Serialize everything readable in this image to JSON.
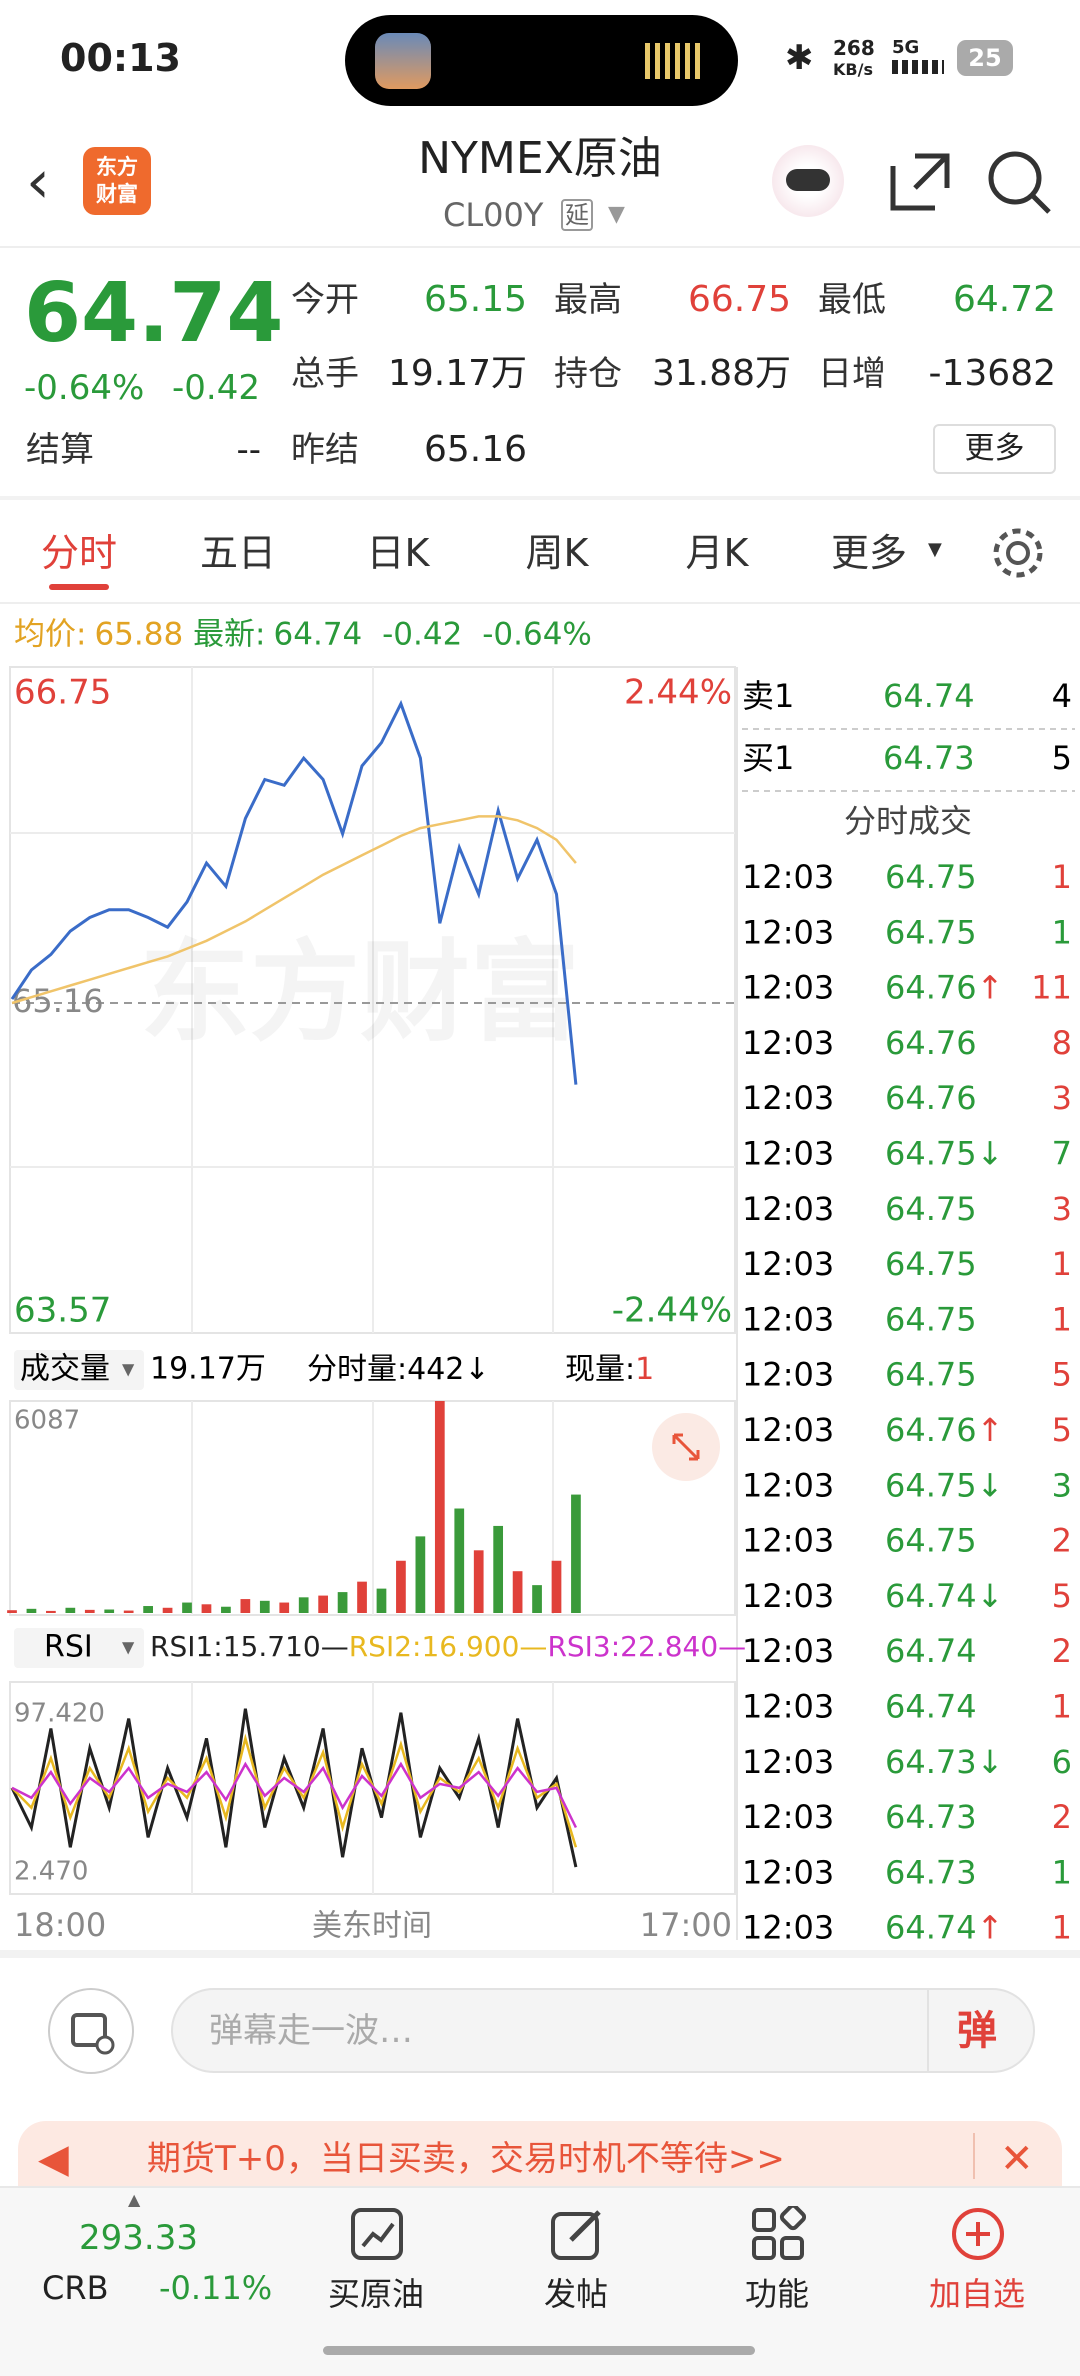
{
  "status_bar": {
    "time": "00:13",
    "net_speed": "268",
    "net_unit": "KB/s",
    "network": "5G",
    "battery": "25"
  },
  "header": {
    "logo": [
      "东方",
      "财富"
    ],
    "title": "NYMEX原油",
    "code": "CL00Y",
    "tag": "延"
  },
  "quote": {
    "price": "64.74",
    "change_pct": "-0.64%",
    "change": "-0.42",
    "fields": [
      {
        "label": "今开",
        "value": "65.15"
      },
      {
        "label": "最高",
        "value": "66.75"
      },
      {
        "label": "最低",
        "value": "64.72"
      },
      {
        "label": "总手",
        "value": "19.17万"
      },
      {
        "label": "持仓",
        "value": "31.88万"
      },
      {
        "label": "日增",
        "value": "-13682"
      },
      {
        "label": "结算",
        "value": "--"
      },
      {
        "label": "昨结",
        "value": "65.16"
      }
    ],
    "more": "更多"
  },
  "tabs": [
    "分时",
    "五日",
    "日K",
    "周K",
    "月K",
    "更多"
  ],
  "info": {
    "avg_label": "均价:",
    "avg": "65.88",
    "last_label": "最新:",
    "last": "64.74",
    "change": "-0.42",
    "change_pct": "-0.64%"
  },
  "chart_data": [
    {
      "type": "line",
      "ylim": [
        63.57,
        66.75
      ],
      "yticks": [
        66.75,
        63.57
      ],
      "y2lim": [
        -2.44,
        2.44
      ],
      "y2ticks": [
        {
          "value": 2.44,
          "label": "2.44%"
        },
        {
          "value": -2.44,
          "label": "-2.44%"
        }
      ],
      "reference_line": 65.16,
      "watermark": "东方财富",
      "x_labels": [
        "18:00",
        "17:00"
      ],
      "x_title": "美东时间",
      "series": [
        {
          "color": "#3a6cc8",
          "values": [
            65.18,
            65.33,
            65.41,
            65.53,
            65.6,
            65.64,
            65.64,
            65.6,
            65.55,
            65.68,
            65.88,
            65.76,
            66.11,
            66.31,
            66.28,
            66.42,
            66.31,
            66.03,
            66.38,
            66.5,
            66.7,
            66.42,
            65.57,
            65.96,
            65.72,
            66.15,
            65.8,
            66.0,
            65.72,
            64.74
          ]
        },
        {
          "color": "#f0c46a",
          "values": [
            65.16,
            65.19,
            65.22,
            65.25,
            65.28,
            65.31,
            65.34,
            65.37,
            65.4,
            65.44,
            65.48,
            65.53,
            65.58,
            65.64,
            65.7,
            65.76,
            65.82,
            65.87,
            65.92,
            65.97,
            66.02,
            66.06,
            66.08,
            66.1,
            66.12,
            66.12,
            66.1,
            66.06,
            66.0,
            65.88
          ]
        }
      ]
    },
    {
      "type": "bar",
      "selector": "成交量",
      "total": "19.17万",
      "period_label": "分时量:",
      "period_value": "442↓",
      "current_label": "现量:",
      "current": "1",
      "ylim": [
        0,
        6087
      ],
      "yticks": [
        6087
      ],
      "series": [
        {
          "color": "#e0413a",
          "values": [
            80,
            null,
            60,
            null,
            90,
            null,
            70,
            null,
            150,
            null,
            250,
            null,
            400,
            null,
            300,
            null,
            500,
            null,
            900,
            null,
            1500,
            null,
            6087,
            null,
            1800,
            null,
            1200,
            null,
            1500,
            null
          ]
        },
        {
          "color": "#3a9a3a",
          "values": [
            null,
            120,
            null,
            150,
            null,
            100,
            null,
            200,
            null,
            300,
            null,
            180,
            null,
            350,
            null,
            450,
            null,
            600,
            null,
            700,
            null,
            2200,
            null,
            3000,
            null,
            2500,
            null,
            800,
            null,
            3400
          ]
        }
      ]
    },
    {
      "type": "line",
      "selector": "RSI",
      "ylim": [
        2.47,
        97.42
      ],
      "yticks": [
        {
          "value": 97.42,
          "label": "97.420"
        },
        {
          "value": 2.47,
          "label": "2.470"
        }
      ],
      "series": [
        {
          "name": "RSI1:15.710—",
          "color": "#222222",
          "values": [
            50,
            30,
            80,
            20,
            70,
            40,
            85,
            25,
            60,
            35,
            75,
            20,
            90,
            30,
            65,
            40,
            80,
            15,
            70,
            35,
            88,
            25,
            60,
            45,
            75,
            30,
            85,
            40,
            55,
            10
          ]
        },
        {
          "name": "RSI2:16.900—",
          "color": "#e8b820",
          "values": [
            50,
            40,
            65,
            35,
            60,
            45,
            70,
            38,
            55,
            45,
            65,
            35,
            75,
            40,
            60,
            45,
            68,
            30,
            62,
            42,
            72,
            38,
            55,
            48,
            65,
            40,
            70,
            45,
            52,
            20
          ]
        },
        {
          "name": "RSI3:22.840—",
          "color": "#cc33cc",
          "values": [
            50,
            45,
            58,
            42,
            55,
            48,
            60,
            45,
            52,
            48,
            58,
            44,
            62,
            46,
            55,
            48,
            60,
            40,
            56,
            46,
            62,
            45,
            52,
            50,
            58,
            46,
            60,
            48,
            50,
            30
          ]
        }
      ]
    }
  ],
  "order_book": [
    {
      "label": "卖1",
      "price": "64.74",
      "vol": "4"
    },
    {
      "label": "买1",
      "price": "64.73",
      "vol": "5"
    }
  ],
  "trades_title": "分时成交",
  "trades": [
    {
      "time": "12:03",
      "price": "64.75",
      "vol": "1",
      "vol_color": "#e0413a"
    },
    {
      "time": "12:03",
      "price": "64.75",
      "vol": "1",
      "vol_color": "#2a9a3a"
    },
    {
      "time": "12:03",
      "price": "64.76",
      "dir": "↑",
      "vol": "11",
      "vol_color": "#e0413a"
    },
    {
      "time": "12:03",
      "price": "64.76",
      "vol": "8",
      "vol_color": "#e0413a"
    },
    {
      "time": "12:03",
      "price": "64.76",
      "vol": "3",
      "vol_color": "#e0413a"
    },
    {
      "time": "12:03",
      "price": "64.75",
      "dir": "↓",
      "vol": "7",
      "vol_color": "#2a9a3a"
    },
    {
      "time": "12:03",
      "price": "64.75",
      "vol": "3",
      "vol_color": "#e0413a"
    },
    {
      "time": "12:03",
      "price": "64.75",
      "vol": "1",
      "vol_color": "#e0413a"
    },
    {
      "time": "12:03",
      "price": "64.75",
      "vol": "1",
      "vol_color": "#e0413a"
    },
    {
      "time": "12:03",
      "price": "64.75",
      "vol": "5",
      "vol_color": "#e0413a"
    },
    {
      "time": "12:03",
      "price": "64.76",
      "dir": "↑",
      "vol": "5",
      "vol_color": "#e0413a"
    },
    {
      "time": "12:03",
      "price": "64.75",
      "dir": "↓",
      "vol": "3",
      "vol_color": "#2a9a3a"
    },
    {
      "time": "12:03",
      "price": "64.75",
      "vol": "2",
      "vol_color": "#e0413a"
    },
    {
      "time": "12:03",
      "price": "64.74",
      "dir": "↓",
      "vol": "5",
      "vol_color": "#e0413a"
    },
    {
      "time": "12:03",
      "price": "64.74",
      "vol": "2",
      "vol_color": "#e0413a"
    },
    {
      "time": "12:03",
      "price": "64.74",
      "vol": "1",
      "vol_color": "#e0413a"
    },
    {
      "time": "12:03",
      "price": "64.73",
      "dir": "↓",
      "vol": "6",
      "vol_color": "#2a9a3a"
    },
    {
      "time": "12:03",
      "price": "64.73",
      "vol": "2",
      "vol_color": "#e0413a"
    },
    {
      "time": "12:03",
      "price": "64.73",
      "vol": "1",
      "vol_color": "#2a9a3a"
    },
    {
      "time": "12:03",
      "price": "64.74",
      "dir": "↑",
      "vol": "1",
      "vol_color": "#e0413a"
    }
  ],
  "comment": {
    "placeholder": "弹幕走一波…",
    "button": "弹"
  },
  "banner": {
    "text": "期货T+0，当日买卖，交易时机不等待>>"
  },
  "bottom_bar": {
    "index_value": "293.33",
    "index_name": "CRB",
    "index_change": "-0.11%",
    "items": [
      "买原油",
      "发帖",
      "功能",
      "加自选"
    ]
  }
}
